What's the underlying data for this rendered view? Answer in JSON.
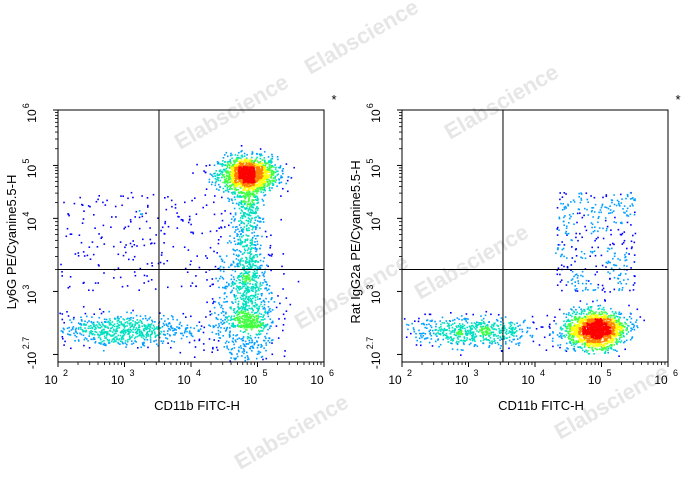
{
  "watermark": "Elabscience",
  "chart_data": [
    {
      "type": "scatter",
      "title": "",
      "xlabel": "CD11b FITC-H",
      "ylabel": "Ly6G PE/Cyanine5.5-H",
      "corner_mark": "*",
      "x_scale": "log",
      "y_scale": "log",
      "xlim": [
        100,
        1000000
      ],
      "ylim": [
        -501,
        1000000
      ],
      "x_ticks": [
        {
          "base": "10",
          "exp": "2"
        },
        {
          "base": "10",
          "exp": "3"
        },
        {
          "base": "10",
          "exp": "4"
        },
        {
          "base": "10",
          "exp": "5"
        },
        {
          "base": "10",
          "exp": "6"
        }
      ],
      "y_ticks": [
        {
          "base": "-10",
          "exp": "2.7"
        },
        {
          "base": "10",
          "exp": "3"
        },
        {
          "base": "10",
          "exp": "4"
        },
        {
          "base": "10",
          "exp": "5"
        },
        {
          "base": "10",
          "exp": "6"
        }
      ],
      "gate": {
        "x": 3300,
        "y": 2000
      },
      "populations": [
        {
          "name": "",
          "cx": 70000,
          "cy": 70000,
          "sdx": 0.22,
          "sdy": 0.16,
          "n": 1400,
          "density": "high"
        },
        {
          "name": "",
          "cx": 900,
          "cy": 80,
          "sdx": 0.55,
          "sdy": 0.1,
          "n": 700,
          "density": "medium"
        },
        {
          "name": "",
          "cx": 60000,
          "cy": 300,
          "sdx": 0.25,
          "sdy": 0.5,
          "n": 700,
          "density": "medium"
        }
      ],
      "grid": false
    },
    {
      "type": "scatter",
      "title": "",
      "xlabel": "CD11b FITC-H",
      "ylabel": "Rat IgG2a PE/Cyanine5.5-H",
      "corner_mark": "*",
      "x_scale": "log",
      "y_scale": "log",
      "xlim": [
        100,
        1000000
      ],
      "ylim": [
        -501,
        1000000
      ],
      "x_ticks": [
        {
          "base": "10",
          "exp": "2"
        },
        {
          "base": "10",
          "exp": "3"
        },
        {
          "base": "10",
          "exp": "4"
        },
        {
          "base": "10",
          "exp": "5"
        },
        {
          "base": "10",
          "exp": "6"
        }
      ],
      "y_ticks": [
        {
          "base": "-10",
          "exp": "2.7"
        },
        {
          "base": "10",
          "exp": "3"
        },
        {
          "base": "10",
          "exp": "4"
        },
        {
          "base": "10",
          "exp": "5"
        },
        {
          "base": "10",
          "exp": "6"
        }
      ],
      "gate": {
        "x": 3300,
        "y": 2000
      },
      "populations": [
        {
          "name": "",
          "cx": 80000,
          "cy": 100,
          "sdx": 0.22,
          "sdy": 0.12,
          "n": 1600,
          "density": "high"
        },
        {
          "name": "",
          "cx": 1200,
          "cy": 70,
          "sdx": 0.5,
          "sdy": 0.09,
          "n": 600,
          "density": "medium"
        }
      ],
      "grid": false
    }
  ],
  "colors": {
    "axis": "#000000",
    "density_scale": [
      "#0000ff",
      "#00a0ff",
      "#00e0c0",
      "#40ff40",
      "#ffff00",
      "#ff8000",
      "#ff0000"
    ]
  }
}
